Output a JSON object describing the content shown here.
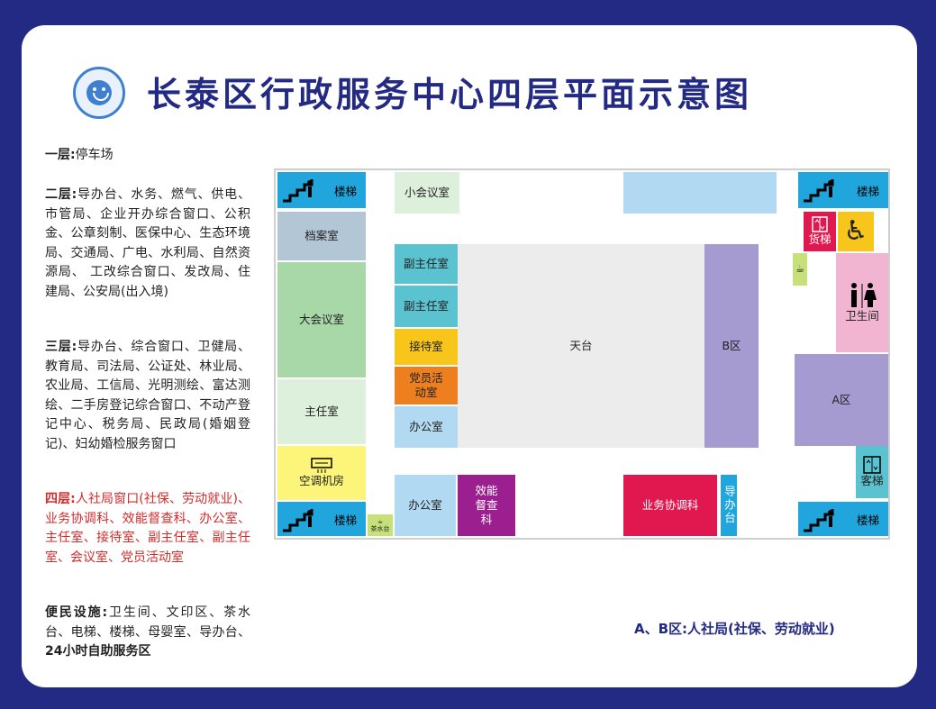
{
  "title": "长泰区行政服务中心四层平面示意图",
  "legend": {
    "f1_label": "一层:",
    "f1_text": "停车场",
    "f2_label": "二层:",
    "f2_text": "导办台、水务、燃气、供电、市管局、企业开办综合窗口、公积金、公章刻制、医保中心、生态环境局、交通局、广电、水利局、自然资源局、 工改综合窗口、发改局、住建局、公安局(出入境)",
    "f3_label": "三层:",
    "f3_text": "导办台、综合窗口、卫健局、教育局、司法局、公证处、林业局、农业局、工信局、光明测绘、富达测绘、二手房登记综合窗口、不动产登记中心、税务局、民政局(婚姻登记)、妇幼婚检服务窗口",
    "f4_label": "四层:",
    "f4_text": "人社局窗口(社保、劳动就业)、业务协调科、效能督查科、办公室、 主任室、接待室、副主任室、副主任室、会议室、党员活动室",
    "fac_label": "便民设施:",
    "fac_text": "卫生间、文印区、茶水台、电梯、楼梯、母婴室、导办台、",
    "fac_bold": "24小时自助服务区"
  },
  "rooms": {
    "stairs": "楼梯",
    "archive": "档案室",
    "big_meeting": "大会议室",
    "director": "主任室",
    "aircon": "空调机房",
    "tea": "茶水台",
    "small_meeting": "小会议室",
    "deputy1": "副主任室",
    "deputy2": "副主任室",
    "reception": "接待室",
    "party": "党员活动室",
    "office1": "办公室",
    "office2": "办公室",
    "terrace": "天台",
    "zone_b": "B区",
    "zone_a": "A区",
    "efficiency": "效能督查科",
    "coordination": "业务协调科",
    "guide": "导办台",
    "freight": "货梯",
    "passenger": "客梯",
    "restroom": "卫生间"
  },
  "note": "A、B区:人社局(社保、劳动就业)",
  "colors": {
    "frame": "#232a83",
    "stair": "#20a6dd",
    "green_dark": "#a8d8a8",
    "green_light": "#dcf0dc",
    "teal": "#5bc2cf",
    "purple": "#a69bd0",
    "magenta": "#9c1f8f",
    "red": "#e1184f",
    "pink": "#f1b4d1"
  }
}
